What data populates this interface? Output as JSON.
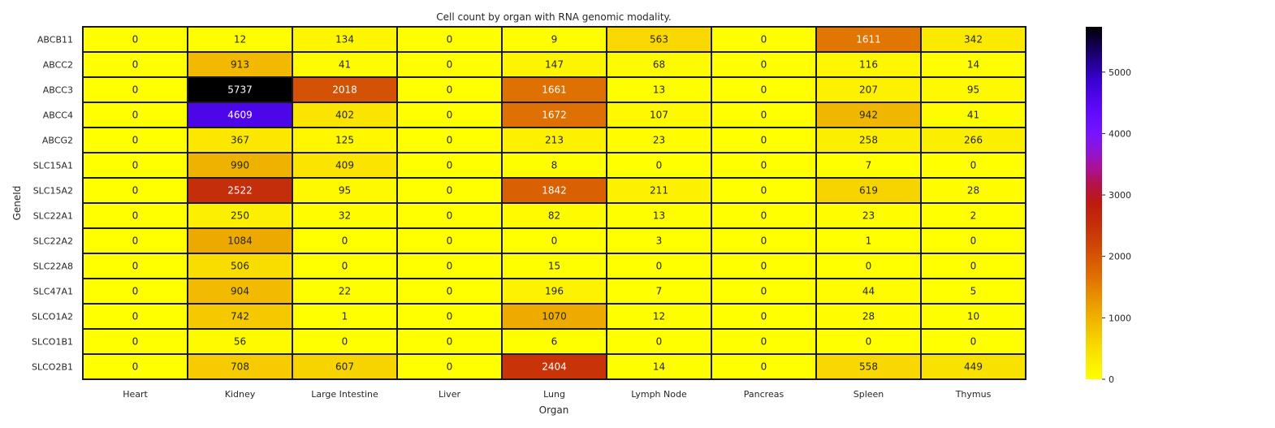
{
  "chart_data": {
    "type": "heatmap",
    "title": "Cell count by organ with RNA genomic modality.",
    "xlabel": "Organ",
    "ylabel": "GeneId",
    "x_categories": [
      "Heart",
      "Kidney",
      "Large Intestine",
      "Liver",
      "Lung",
      "Lymph Node",
      "Pancreas",
      "Spleen",
      "Thymus"
    ],
    "y_categories": [
      "ABCB11",
      "ABCC2",
      "ABCC3",
      "ABCC4",
      "ABCG2",
      "SLC15A1",
      "SLC15A2",
      "SLC22A1",
      "SLC22A2",
      "SLC22A8",
      "SLC47A1",
      "SLCO1A2",
      "SLCO1B1",
      "SLCO2B1"
    ],
    "values": [
      [
        0,
        12,
        134,
        0,
        9,
        563,
        0,
        1611,
        342
      ],
      [
        0,
        913,
        41,
        0,
        147,
        68,
        0,
        116,
        14
      ],
      [
        0,
        5737,
        2018,
        0,
        1661,
        13,
        0,
        207,
        95
      ],
      [
        0,
        4609,
        402,
        0,
        1672,
        107,
        0,
        942,
        41
      ],
      [
        0,
        367,
        125,
        0,
        213,
        23,
        0,
        258,
        266
      ],
      [
        0,
        990,
        409,
        0,
        8,
        0,
        0,
        7,
        0
      ],
      [
        0,
        2522,
        95,
        0,
        1842,
        211,
        0,
        619,
        28
      ],
      [
        0,
        250,
        32,
        0,
        82,
        13,
        0,
        23,
        2
      ],
      [
        0,
        1084,
        0,
        0,
        0,
        3,
        0,
        1,
        0
      ],
      [
        0,
        506,
        0,
        0,
        15,
        0,
        0,
        0,
        0
      ],
      [
        0,
        904,
        22,
        0,
        196,
        7,
        0,
        44,
        5
      ],
      [
        0,
        742,
        1,
        0,
        1070,
        12,
        0,
        28,
        10
      ],
      [
        0,
        56,
        0,
        0,
        6,
        0,
        0,
        0,
        0
      ],
      [
        0,
        708,
        607,
        0,
        2404,
        14,
        0,
        558,
        449
      ]
    ],
    "colormap": "gnuplot2_r",
    "color_range": [
      0,
      5737
    ],
    "colorbar_ticks": [
      0,
      1000,
      2000,
      3000,
      4000,
      5000
    ],
    "cell_border_color": "#1a1a1a",
    "annotations": true
  }
}
